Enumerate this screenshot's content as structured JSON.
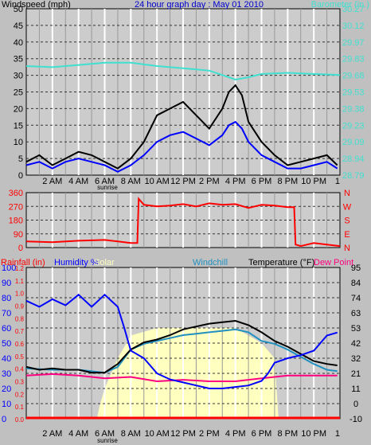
{
  "chart_data": [
    {
      "type": "line",
      "panel": "wind-barometer",
      "title": "24 hour graph day : May 01 2010",
      "ylabel_left": "Windspeed (mph)",
      "ylabel_right": "Barometer (in.)",
      "x_ticks": [
        "2 AM",
        "4 AM",
        "6 AM",
        "8 AM",
        "10 AM",
        "12 PM",
        "2 PM",
        "4 PM",
        "6 PM",
        "8 PM",
        "10 PM",
        "1"
      ],
      "sunrise_label": "sunrise",
      "xlim": [
        0,
        24
      ],
      "ylim_left": [
        0,
        50
      ],
      "ylim_right": [
        28.79,
        30.27
      ],
      "left_ticks": [
        "0",
        "5",
        "10",
        "15",
        "20",
        "25",
        "30",
        "35",
        "40",
        "45",
        "50"
      ],
      "right_ticks": [
        "28.79",
        "28.94",
        "29.09",
        "29.23",
        "29.38",
        "29.53",
        "29.68",
        "29.83",
        "29.97",
        "30.12",
        "30.27"
      ],
      "series": [
        {
          "key": "gust",
          "color": "#000000",
          "x": [
            0,
            1,
            2,
            3,
            4,
            5,
            6,
            7,
            8,
            9,
            10,
            11,
            12,
            13,
            14,
            15,
            15.5,
            16,
            16.5,
            17,
            18,
            19,
            20,
            21,
            22,
            23,
            23.8
          ],
          "values": [
            4,
            6,
            3,
            5,
            7,
            6,
            4,
            2,
            5,
            10,
            18,
            20,
            22,
            18,
            14,
            20,
            25,
            27,
            24,
            16,
            10,
            6,
            3,
            4,
            5,
            6,
            3
          ]
        },
        {
          "key": "wind_avg",
          "color": "#0000ff",
          "x": [
            0,
            1,
            2,
            3,
            4,
            5,
            6,
            7,
            8,
            9,
            10,
            11,
            12,
            13,
            14,
            15,
            15.5,
            16,
            16.5,
            17,
            18,
            19,
            20,
            21,
            22,
            23,
            23.8
          ],
          "values": [
            3,
            4,
            2,
            4,
            5,
            4,
            3,
            1,
            3,
            6,
            10,
            12,
            13,
            11,
            9,
            12,
            15,
            16,
            14,
            10,
            6,
            4,
            2,
            2,
            3,
            4,
            2
          ]
        },
        {
          "key": "barometer",
          "color": "#40e0d0",
          "axis": "right",
          "x": [
            0,
            2,
            4,
            6,
            8,
            10,
            12,
            14,
            15,
            16,
            17,
            18,
            20,
            22,
            24
          ],
          "values": [
            29.76,
            29.75,
            29.77,
            29.79,
            29.79,
            29.76,
            29.74,
            29.72,
            29.68,
            29.64,
            29.66,
            29.69,
            29.7,
            29.69,
            29.68
          ]
        }
      ]
    },
    {
      "type": "line",
      "panel": "wind-direction",
      "ylim": [
        0,
        360
      ],
      "left_ticks": [
        "0",
        "90",
        "180",
        "270",
        "360"
      ],
      "right_ticks": [
        "N",
        "E",
        "S",
        "W",
        "N"
      ],
      "series": [
        {
          "key": "direction",
          "color": "#ff0000",
          "x": [
            0,
            2,
            4,
            6,
            7,
            8,
            8.5,
            8.6,
            9,
            10,
            11,
            12,
            13,
            14,
            15,
            16,
            17,
            18,
            19,
            20,
            20.5,
            20.6,
            21,
            22,
            23,
            24
          ],
          "values": [
            40,
            35,
            45,
            50,
            40,
            30,
            30,
            320,
            280,
            270,
            275,
            285,
            270,
            290,
            280,
            285,
            260,
            280,
            275,
            265,
            265,
            20,
            10,
            30,
            20,
            10
          ]
        }
      ]
    },
    {
      "type": "line",
      "panel": "temperature-humidity",
      "legend": [
        "Rainfall (in)",
        "Humidity %",
        "Solar",
        "Windchill",
        "Temperature (°F)",
        "Dew Point"
      ],
      "ylim_left": [
        0,
        100
      ],
      "ylim_right": [
        -10,
        95
      ],
      "ylim_rain": [
        0,
        1.2
      ],
      "left_ticks_humidity": [
        "0",
        "10",
        "20",
        "30",
        "40",
        "50",
        "60",
        "70",
        "80",
        "90",
        "100"
      ],
      "left_ticks_rain": [
        "0.0",
        "0.1",
        "0.2",
        "0.3",
        "0.4",
        "0.5",
        "0.6",
        "0.7",
        "0.8",
        "0.9",
        "1.0",
        "1.1",
        "1.2"
      ],
      "right_ticks": [
        "-10",
        "0",
        "11",
        "21",
        "32",
        "42",
        "53",
        "63",
        "74",
        "84",
        "95"
      ],
      "series": [
        {
          "key": "solar",
          "color": "#ffffc0",
          "axis": "humidity",
          "x": [
            0,
            5.4,
            5.6,
            6,
            7,
            8,
            10,
            12,
            14,
            16,
            17,
            18,
            19,
            19.3,
            24
          ],
          "values": [
            0,
            0,
            8,
            20,
            40,
            55,
            60,
            60,
            60,
            60,
            55,
            50,
            40,
            0,
            0
          ]
        },
        {
          "key": "humidity",
          "color": "#0000ff",
          "axis": "humidity",
          "x": [
            0,
            1,
            2,
            3,
            4,
            5,
            6,
            7,
            7.5,
            8,
            9,
            10,
            11,
            12,
            13,
            14,
            15,
            16,
            17,
            18,
            18.5,
            19,
            20,
            21,
            22,
            23,
            23.8
          ],
          "values": [
            78,
            74,
            79,
            75,
            82,
            74,
            82,
            74,
            60,
            45,
            40,
            30,
            26,
            24,
            22,
            20,
            20,
            21,
            22,
            25,
            30,
            37,
            40,
            42,
            45,
            55,
            57
          ]
        },
        {
          "key": "temperature",
          "color": "#000000",
          "axis": "temperature",
          "x": [
            0,
            1,
            2,
            3,
            4,
            5,
            6,
            7,
            8,
            9,
            10,
            11,
            12,
            13,
            14,
            15,
            16,
            17,
            18,
            19,
            20,
            21,
            22,
            23,
            23.8
          ],
          "values": [
            26,
            24,
            25,
            24,
            24,
            22,
            22,
            28,
            38,
            43,
            45,
            48,
            52,
            54,
            56,
            57,
            58,
            55,
            50,
            44,
            40,
            35,
            30,
            28,
            27
          ]
        },
        {
          "key": "windchill",
          "color": "#2090c0",
          "axis": "temperature",
          "x": [
            0,
            2,
            4,
            6,
            7,
            8,
            9,
            10,
            11,
            12,
            13,
            14,
            15,
            16,
            17,
            18,
            19,
            20,
            21,
            22,
            23,
            23.8
          ],
          "values": [
            25,
            24,
            24,
            22,
            26,
            38,
            42,
            44,
            46,
            48,
            49,
            50,
            51,
            52,
            50,
            44,
            42,
            38,
            33,
            28,
            24,
            23
          ]
        },
        {
          "key": "dewpoint",
          "color": "#ff0080",
          "axis": "temperature",
          "x": [
            0,
            2,
            4,
            6,
            8,
            10,
            12,
            14,
            16,
            18,
            20,
            22,
            23.8
          ],
          "values": [
            20,
            21,
            20,
            18,
            19,
            16,
            17,
            16,
            16,
            18,
            20,
            20,
            20
          ]
        },
        {
          "key": "rainfall",
          "color": "#ff0000",
          "axis": "rain",
          "x": [
            0,
            24
          ],
          "values": [
            0,
            0
          ]
        }
      ]
    }
  ]
}
